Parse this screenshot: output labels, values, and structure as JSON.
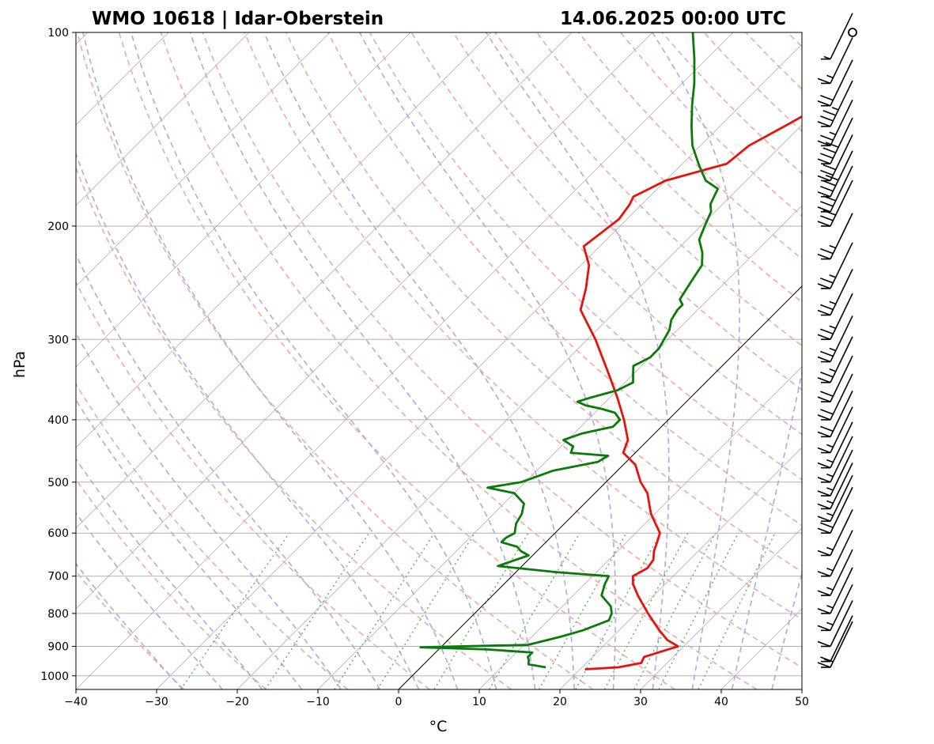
{
  "title_left": "WMO 10618 | Idar-Oberstein",
  "title_right": "14.06.2025 00:00 UTC",
  "chart_data": {
    "type": "line",
    "diagram": "skew-T log-p",
    "xlabel": "°C",
    "ylabel": "hPa",
    "xlim": [
      -40,
      50
    ],
    "ylim": [
      1050,
      100
    ],
    "y_scale": "log",
    "grid": true,
    "x_ticks": [
      "−40",
      "−30",
      "−20",
      "−10",
      "0",
      "10",
      "20",
      "30",
      "40",
      "50"
    ],
    "y_ticks": [
      "100",
      "200",
      "300",
      "400",
      "500",
      "600",
      "700",
      "800",
      "900",
      "1000"
    ],
    "colors": {
      "temperature": "#e8120c",
      "dewpoint": "#0a7a0a",
      "dry_adiabats": "#f4a7a7",
      "moist_adiabats": "#a9a9f0",
      "mixing_ratio": "#5cb85c",
      "isotherms": "#8c8c8c",
      "zero_isotherm": "#000000"
    },
    "series": [
      {
        "key": "temperature",
        "points": [
          [
            977,
            20.6
          ],
          [
            970,
            24.5
          ],
          [
            955,
            26.8
          ],
          [
            935,
            26.4
          ],
          [
            915,
            28.0
          ],
          [
            900,
            29.3
          ],
          [
            880,
            27.2
          ],
          [
            850,
            25.0
          ],
          [
            800,
            21.5
          ],
          [
            750,
            18.0
          ],
          [
            720,
            16.0
          ],
          [
            700,
            15.0
          ],
          [
            680,
            15.8
          ],
          [
            660,
            15.5
          ],
          [
            640,
            14.5
          ],
          [
            620,
            13.8
          ],
          [
            600,
            13.0
          ],
          [
            560,
            9.5
          ],
          [
            520,
            6.5
          ],
          [
            500,
            4.3
          ],
          [
            470,
            1.5
          ],
          [
            450,
            -1.5
          ],
          [
            430,
            -2.5
          ],
          [
            400,
            -5.5
          ],
          [
            370,
            -9.0
          ],
          [
            340,
            -13.0
          ],
          [
            300,
            -19.0
          ],
          [
            270,
            -24.5
          ],
          [
            250,
            -26.5
          ],
          [
            230,
            -29.0
          ],
          [
            215,
            -32.0
          ],
          [
            205,
            -31.5
          ],
          [
            195,
            -31.0
          ],
          [
            185,
            -31.5
          ],
          [
            180,
            -32.0
          ],
          [
            170,
            -30.0
          ],
          [
            160,
            -24.5
          ],
          [
            150,
            -24.0
          ],
          [
            140,
            -22.0
          ],
          [
            130,
            -20.0
          ],
          [
            120,
            -21.0
          ],
          [
            110,
            -21.5
          ],
          [
            100,
            -21.5
          ]
        ]
      },
      {
        "key": "dewpoint",
        "points": [
          [
            970,
            15.5
          ],
          [
            960,
            13.0
          ],
          [
            945,
            12.5
          ],
          [
            935,
            12.0
          ],
          [
            920,
            12.0
          ],
          [
            910,
            6.0
          ],
          [
            903,
            -2.5
          ],
          [
            895,
            10.5
          ],
          [
            870,
            13.5
          ],
          [
            850,
            15.5
          ],
          [
            820,
            17.5
          ],
          [
            800,
            17.0
          ],
          [
            780,
            16.0
          ],
          [
            750,
            13.5
          ],
          [
            720,
            12.5
          ],
          [
            700,
            12.0
          ],
          [
            690,
            5.0
          ],
          [
            675,
            -3.0
          ],
          [
            665,
            -2.0
          ],
          [
            650,
            -0.5
          ],
          [
            640,
            -2.0
          ],
          [
            630,
            -3.0
          ],
          [
            620,
            -5.5
          ],
          [
            610,
            -5.5
          ],
          [
            600,
            -5.0
          ],
          [
            580,
            -6.0
          ],
          [
            560,
            -6.5
          ],
          [
            540,
            -7.5
          ],
          [
            520,
            -10.0
          ],
          [
            510,
            -14.0
          ],
          [
            500,
            -10.5
          ],
          [
            480,
            -8.0
          ],
          [
            465,
            -3.5
          ],
          [
            455,
            -3.0
          ],
          [
            450,
            -8.0
          ],
          [
            440,
            -8.5
          ],
          [
            430,
            -10.5
          ],
          [
            420,
            -9.0
          ],
          [
            410,
            -6.0
          ],
          [
            400,
            -6.0
          ],
          [
            390,
            -7.5
          ],
          [
            385,
            -9.5
          ],
          [
            380,
            -12.0
          ],
          [
            375,
            -13.5
          ],
          [
            370,
            -12.5
          ],
          [
            360,
            -10.0
          ],
          [
            350,
            -9.0
          ],
          [
            340,
            -10.0
          ],
          [
            330,
            -11.0
          ],
          [
            320,
            -10.0
          ],
          [
            310,
            -10.0
          ],
          [
            300,
            -10.5
          ],
          [
            290,
            -11.0
          ],
          [
            280,
            -12.0
          ],
          [
            270,
            -12.5
          ],
          [
            265,
            -12.5
          ],
          [
            260,
            -13.5
          ],
          [
            250,
            -14.0
          ],
          [
            240,
            -14.5
          ],
          [
            230,
            -15.0
          ],
          [
            220,
            -16.5
          ],
          [
            210,
            -18.5
          ],
          [
            200,
            -19.5
          ],
          [
            195,
            -20.0
          ],
          [
            190,
            -20.5
          ],
          [
            185,
            -21.5
          ],
          [
            180,
            -22.0
          ],
          [
            175,
            -22.5
          ],
          [
            170,
            -25.0
          ],
          [
            165,
            -26.5
          ],
          [
            160,
            -28.0
          ],
          [
            150,
            -31.0
          ],
          [
            140,
            -33.5
          ],
          [
            130,
            -36.0
          ],
          [
            120,
            -38.5
          ],
          [
            110,
            -41.5
          ],
          [
            100,
            -45.0
          ]
        ]
      }
    ],
    "wind_barbs": [
      {
        "p": 100,
        "kt": 0
      },
      {
        "p": 110,
        "kt": 5
      },
      {
        "p": 120,
        "kt": 15
      },
      {
        "p": 130,
        "kt": 20
      },
      {
        "p": 140,
        "kt": 35
      },
      {
        "p": 150,
        "kt": 25
      },
      {
        "p": 160,
        "kt": 40
      },
      {
        "p": 170,
        "kt": 30
      },
      {
        "p": 180,
        "kt": 40
      },
      {
        "p": 190,
        "kt": 30
      },
      {
        "p": 200,
        "kt": 30
      },
      {
        "p": 225,
        "kt": 25
      },
      {
        "p": 250,
        "kt": 25
      },
      {
        "p": 275,
        "kt": 25
      },
      {
        "p": 300,
        "kt": 25
      },
      {
        "p": 325,
        "kt": 25
      },
      {
        "p": 350,
        "kt": 25
      },
      {
        "p": 375,
        "kt": 20
      },
      {
        "p": 400,
        "kt": 20
      },
      {
        "p": 425,
        "kt": 20
      },
      {
        "p": 450,
        "kt": 15
      },
      {
        "p": 475,
        "kt": 15
      },
      {
        "p": 500,
        "kt": 15
      },
      {
        "p": 525,
        "kt": 15
      },
      {
        "p": 550,
        "kt": 15
      },
      {
        "p": 575,
        "kt": 15
      },
      {
        "p": 600,
        "kt": 20
      },
      {
        "p": 650,
        "kt": 15
      },
      {
        "p": 700,
        "kt": 15
      },
      {
        "p": 750,
        "kt": 15
      },
      {
        "p": 800,
        "kt": 15
      },
      {
        "p": 850,
        "kt": 15
      },
      {
        "p": 900,
        "kt": 10
      },
      {
        "p": 950,
        "kt": 5
      },
      {
        "p": 970,
        "kt": 20
      }
    ]
  }
}
